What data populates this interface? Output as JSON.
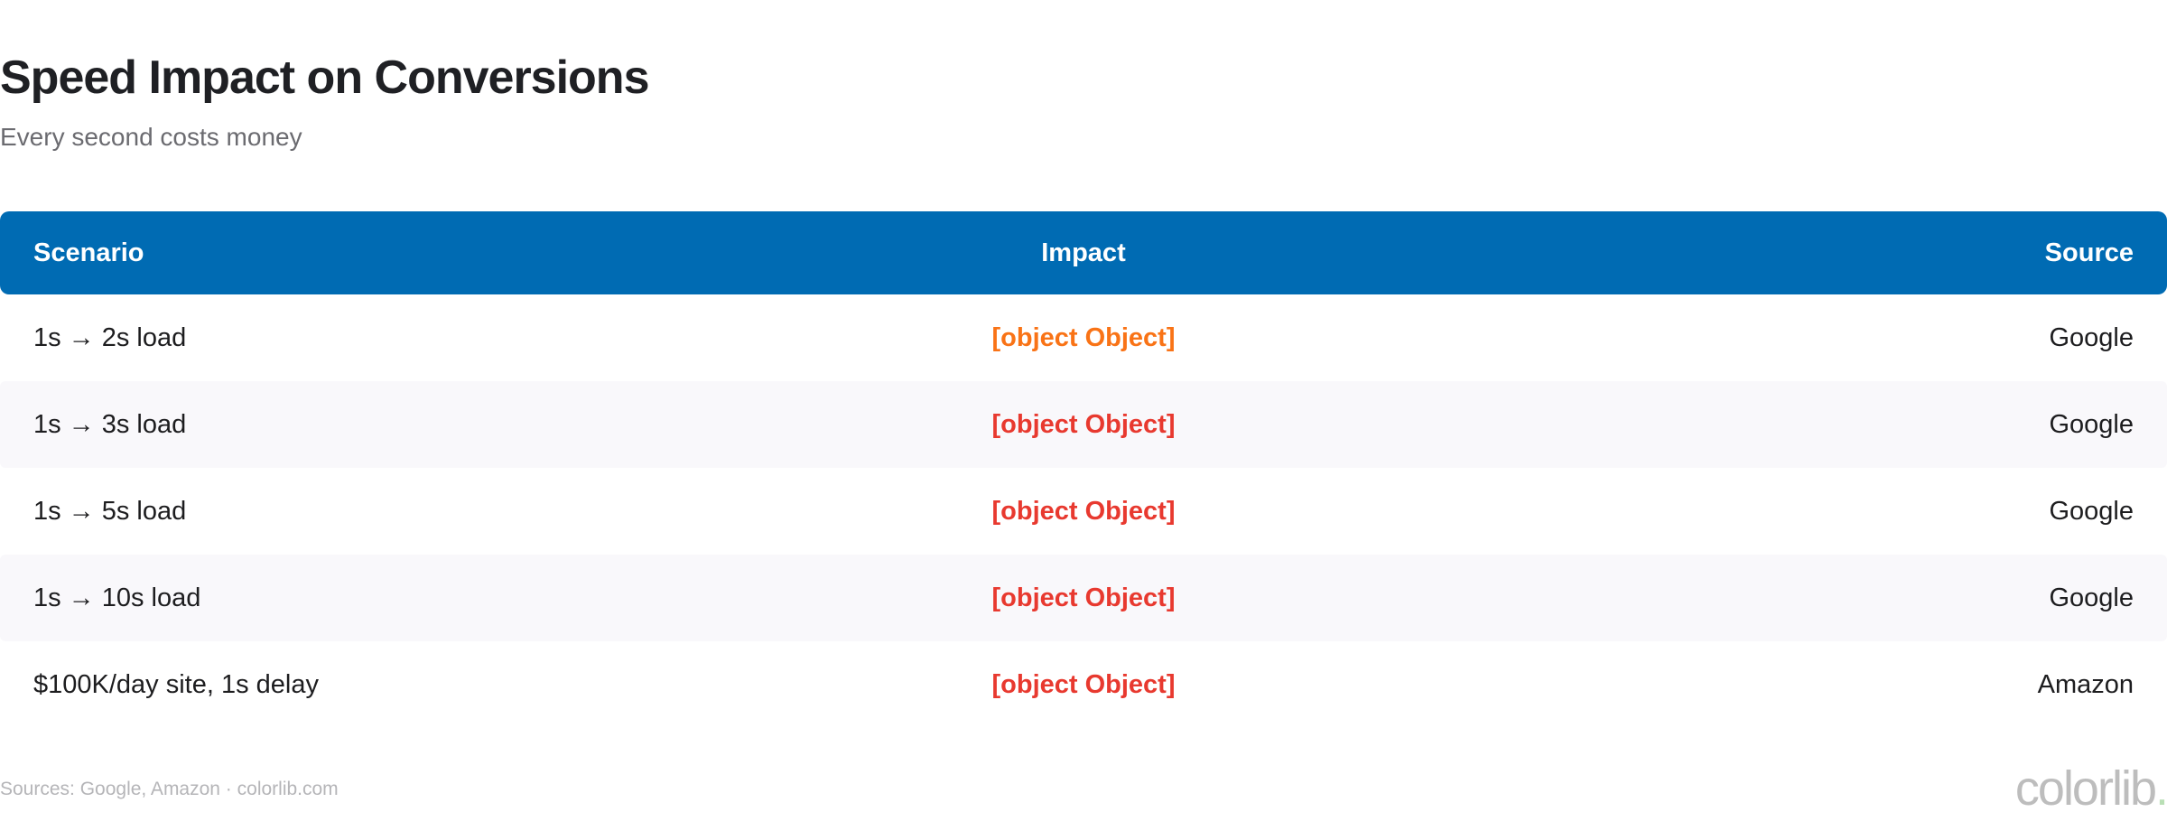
{
  "title": "Speed Impact on Conversions",
  "subtitle": "Every second costs money",
  "table": {
    "headers": [
      "Scenario",
      "Impact",
      "Source"
    ],
    "rows": [
      {
        "scenario": "1s → 2s load",
        "impact": "[object Object]",
        "source": "Google",
        "impact_color": "#f97316"
      },
      {
        "scenario": "1s → 3s load",
        "impact": "[object Object]",
        "source": "Google",
        "impact_color": "#e8392f"
      },
      {
        "scenario": "1s → 5s load",
        "impact": "[object Object]",
        "source": "Google",
        "impact_color": "#e8392f"
      },
      {
        "scenario": "1s → 10s load",
        "impact": "[object Object]",
        "source": "Google",
        "impact_color": "#e8392f"
      },
      {
        "scenario": "$100K/day site, 1s delay",
        "impact": "[object Object]",
        "source": "Amazon",
        "impact_color": "#e8392f"
      }
    ]
  },
  "footer": "Sources: Google, Amazon · colorlib.com",
  "logo": {
    "text": "colorlib",
    "dot": "."
  },
  "colors": {
    "header_bg": "#006bb3",
    "stripe": "#f9f8fb"
  }
}
